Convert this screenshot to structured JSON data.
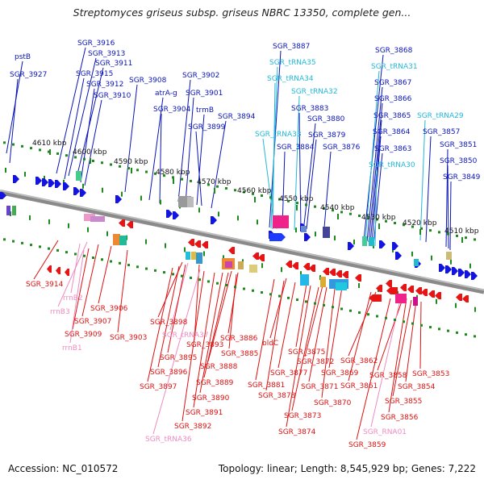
{
  "title": "Streptomyces griseus subsp. griseus NBRC 13350, complete gen...",
  "footer": {
    "accession": "Accession: NC_010572",
    "summary": "Topology: linear; Length: 8,545,929 bp; Genes: 7,222"
  },
  "colors": {
    "top_gene": "#0a14b8",
    "top_rna": "#22b8d8",
    "bottom_gene": "#dd1010",
    "bottom_rna": "#ee8cc0",
    "backbone": "#888888",
    "ticks": "#1e8a1e"
  },
  "ruler": [
    "4610 kbp",
    "4600 kbp",
    "4590 kbp",
    "4580 kbp",
    "4570 kbp",
    "4560 kbp",
    "4550 kbp",
    "4540 kbp",
    "4530 kbp",
    "4520 kbp",
    "4510 kbp"
  ],
  "labels_top": [
    "pstB",
    "SGR_3927",
    "SGR_3916",
    "SGR_3913",
    "SGR_3911",
    "SGR_3915",
    "SGR_3912",
    "SGR_3910",
    "SGR_3908",
    "atrA-g",
    "SGR_3904",
    "SGR_3902",
    "SGR_3901",
    "trmB",
    "SGR_3899",
    "SGR_3894",
    "SGR_3887",
    "SGR_tRNA35",
    "SGR_tRNA34",
    "SGR_tRNA32",
    "SGR_3883",
    "SGR_3880",
    "SGR_tRNA33",
    "SGR_3884",
    "SGR_3879",
    "SGR_3876",
    "SGR_3868",
    "SGR_tRNA31",
    "SGR_3867",
    "SGR_3866",
    "SGR_3865",
    "SGR_tRNA29",
    "SGR_3864",
    "SGR_3857",
    "SGR_3863",
    "SGR_3851",
    "SGR_tRNA30",
    "SGR_3850",
    "SGR_3849"
  ],
  "labels_bottom": [
    "SGR_3914",
    "rrnB2",
    "rrnB3",
    "SGR_3906",
    "SGR_3907",
    "SGR_3909",
    "rrnB1",
    "SGR_3903",
    "SGR_3898",
    "SGR_tRNA37",
    "SGR_3893",
    "SGR_3895",
    "SGR_3896",
    "SGR_3897",
    "SGR_3886",
    "SGR_3885",
    "SGR_3888",
    "SGR_3889",
    "SGR_3890",
    "SGR_3891",
    "SGR_3892",
    "SGR_tRNA36",
    "bldC",
    "SGR_3875",
    "SGR_3872",
    "SGR_3877",
    "SGR_3881",
    "SGR_3878",
    "SGR_3869",
    "SGR_3871",
    "SGR_3870",
    "SGR_3873",
    "SGR_3874",
    "SGR_3862",
    "SGR_3861",
    "SGR_3858",
    "SGR_3853",
    "SGR_3854",
    "SGR_3855",
    "SGR_3856",
    "SGR_RNA01",
    "SGR_3859"
  ]
}
